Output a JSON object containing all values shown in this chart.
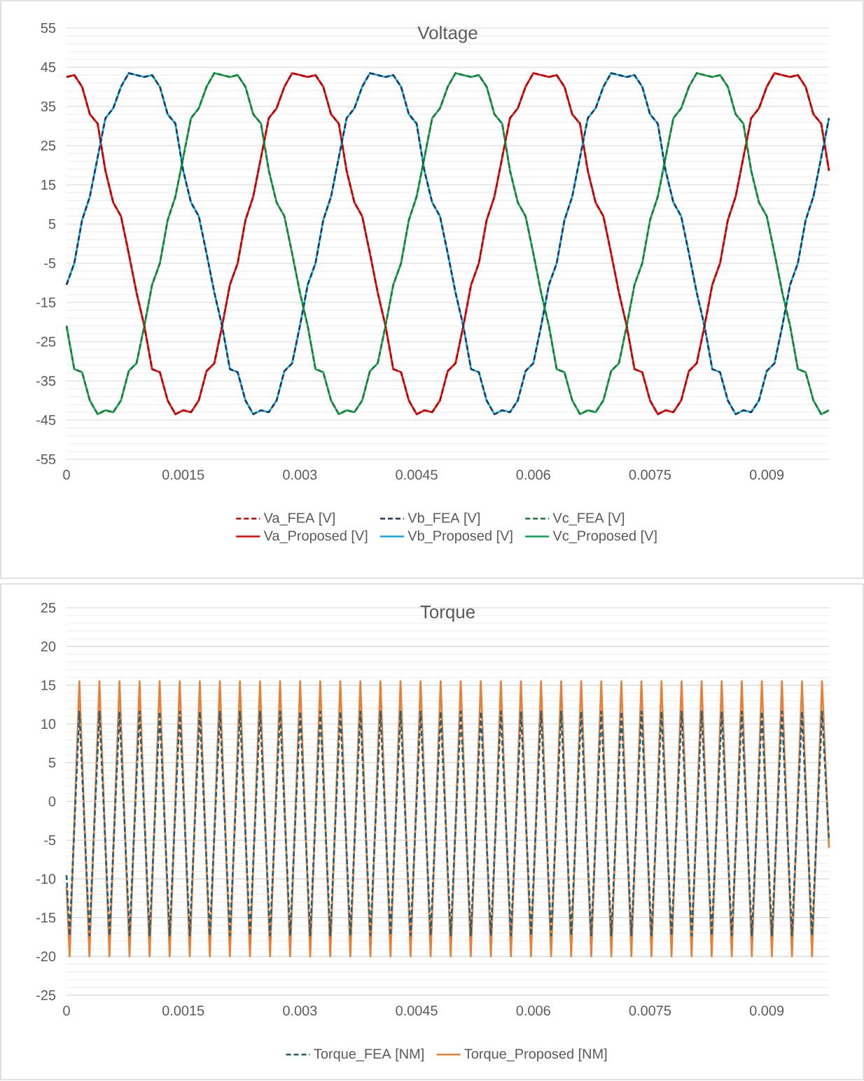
{
  "chart_data": [
    {
      "type": "line",
      "title": "Voltage",
      "xlim": [
        0,
        0.0098
      ],
      "xticks": [
        0,
        0.0015,
        0.003,
        0.0045,
        0.006,
        0.0075,
        0.009
      ],
      "ylim": [
        -55,
        55
      ],
      "yticks": [
        -55,
        -45,
        -35,
        -25,
        -15,
        -5,
        5,
        15,
        25,
        35,
        45,
        55
      ],
      "grid": "y",
      "legend": "bottom",
      "x": [
        0,
        0.0001,
        0.0002,
        0.0003,
        0.0004,
        0.0005,
        0.0006,
        0.0007,
        0.0008,
        0.0009,
        0.001,
        0.0011,
        0.0012,
        0.0013,
        0.0014,
        0.0015,
        0.0016,
        0.0017,
        0.0018,
        0.0019,
        0.002,
        0.0021,
        0.0022,
        0.0023,
        0.0024,
        0.0025,
        0.0026,
        0.0027,
        0.0028,
        0.0029,
        0.003,
        0.0031,
        0.0032,
        0.0033,
        0.0034,
        0.0035,
        0.0036,
        0.0037,
        0.0038,
        0.0039,
        0.004,
        0.0041,
        0.0042,
        0.0043,
        0.0044,
        0.0045,
        0.0046,
        0.0047,
        0.0048,
        0.0049,
        0.005,
        0.0051,
        0.0052,
        0.0053,
        0.0054,
        0.0055,
        0.0056,
        0.0057,
        0.0058,
        0.0059,
        0.006,
        0.0061,
        0.0062,
        0.0063,
        0.0064,
        0.0065,
        0.0066,
        0.0067,
        0.0068,
        0.0069,
        0.007,
        0.0071,
        0.0072,
        0.0073,
        0.0074,
        0.0075,
        0.0076,
        0.0077,
        0.0078,
        0.0079,
        0.008,
        0.0081,
        0.0082,
        0.0083,
        0.0084,
        0.0085,
        0.0086,
        0.0087,
        0.0088,
        0.0089,
        0.009,
        0.0091,
        0.0092,
        0.0093,
        0.0094,
        0.0095,
        0.0096,
        0.0097,
        0.0098
      ],
      "series": [
        {
          "name": "Va_FEA [V]",
          "color": "#c00000",
          "line_style": "dashed",
          "values": [
            42.5,
            43,
            40,
            33,
            30.6,
            18.6,
            10.5,
            7,
            -2.5,
            -12.5,
            -21,
            -32,
            -32.8,
            -40,
            -43.5,
            -42.5,
            -43,
            -40,
            -32.5,
            -30.5,
            -21,
            -10.5,
            -5,
            6,
            12,
            22,
            32,
            34.5,
            40,
            43.5,
            43,
            42.5,
            43,
            40,
            33,
            30.6,
            18.6,
            10.5,
            7,
            -2.5,
            -12.5,
            -21,
            -32,
            -32.8,
            -40,
            -43.5,
            -42.5,
            -43,
            -40,
            -32.5,
            -30.5,
            -21,
            -10.5,
            -5,
            6,
            12,
            22,
            32,
            34.5,
            40,
            43.5,
            43,
            42.5,
            43,
            40,
            33,
            30.6,
            18.6,
            10.5,
            7,
            -2.5,
            -12.5,
            -21,
            -32,
            -32.8,
            -40,
            -43.5,
            -42.5,
            -43,
            -40,
            -32.5,
            -30.5,
            -21,
            -10.5,
            -5,
            6,
            12,
            22,
            32,
            34.5,
            40,
            43.5,
            43,
            42.5,
            43,
            40,
            33,
            30.6,
            18.6
          ]
        },
        {
          "name": "Vb_FEA [V]",
          "color": "#1f3864",
          "line_style": "dashed",
          "values": [
            -10.5,
            -5,
            6,
            12,
            22,
            32,
            34.5,
            40,
            43.5,
            43,
            42.5,
            43,
            40,
            33,
            30.6,
            18.6,
            10.5,
            7,
            -2.5,
            -12.5,
            -21,
            -32,
            -32.8,
            -40,
            -43.5,
            -42.5,
            -43,
            -40,
            -32.5,
            -30.5,
            -21,
            -10.5,
            -5,
            6,
            12,
            22,
            32,
            34.5,
            40,
            43.5,
            43,
            42.5,
            43,
            40,
            33,
            30.6,
            18.6,
            10.5,
            7,
            -2.5,
            -12.5,
            -21,
            -32,
            -32.8,
            -40,
            -43.5,
            -42.5,
            -43,
            -40,
            -32.5,
            -30.5,
            -21,
            -10.5,
            -5,
            6,
            12,
            22,
            32,
            34.5,
            40,
            43.5,
            43,
            42.5,
            43,
            40,
            33,
            30.6,
            18.6,
            10.5,
            7,
            -2.5,
            -12.5,
            -21,
            -32,
            -32.8,
            -40,
            -43.5,
            -42.5,
            -43,
            -40,
            -32.5,
            -30.5,
            -21,
            -10.5,
            -5,
            6,
            12,
            22,
            32
          ]
        },
        {
          "name": "Vc_FEA [V]",
          "color": "#1e7b34",
          "line_style": "dashed",
          "values": [
            -21,
            -32,
            -32.8,
            -40,
            -43.5,
            -42.5,
            -43,
            -40,
            -32.5,
            -30.5,
            -21,
            -10.5,
            -5,
            6,
            12,
            22,
            32,
            34.5,
            40,
            43.5,
            43,
            42.5,
            43,
            40,
            33,
            30.6,
            18.6,
            10.5,
            7,
            -2.5,
            -12.5,
            -21,
            -32,
            -32.8,
            -40,
            -43.5,
            -42.5,
            -43,
            -40,
            -32.5,
            -30.5,
            -21,
            -10.5,
            -5,
            6,
            12,
            22,
            32,
            34.5,
            40,
            43.5,
            43,
            42.5,
            43,
            40,
            33,
            30.6,
            18.6,
            10.5,
            7,
            -2.5,
            -12.5,
            -21,
            -32,
            -32.8,
            -40,
            -43.5,
            -42.5,
            -43,
            -40,
            -32.5,
            -30.5,
            -21,
            -10.5,
            -5,
            6,
            12,
            22,
            32,
            34.5,
            40,
            43.5,
            43,
            42.5,
            43,
            40,
            33,
            30.6,
            18.6,
            10.5,
            7,
            -2.5,
            -12.5,
            -21,
            -32,
            -32.8,
            -40,
            -43.5,
            -42.5
          ]
        },
        {
          "name": "Va_Proposed [V]",
          "color": "#ff0000",
          "line_style": "solid",
          "values": [
            42.5,
            43,
            40,
            33,
            30.6,
            18.6,
            10.5,
            7,
            -2.5,
            -12.5,
            -21,
            -32,
            -32.8,
            -40,
            -43.5,
            -42.5,
            -43,
            -40,
            -32.5,
            -30.5,
            -21,
            -10.5,
            -5,
            6,
            12,
            22,
            32,
            34.5,
            40,
            43.5,
            43,
            42.5,
            43,
            40,
            33,
            30.6,
            18.6,
            10.5,
            7,
            -2.5,
            -12.5,
            -21,
            -32,
            -32.8,
            -40,
            -43.5,
            -42.5,
            -43,
            -40,
            -32.5,
            -30.5,
            -21,
            -10.5,
            -5,
            6,
            12,
            22,
            32,
            34.5,
            40,
            43.5,
            43,
            42.5,
            43,
            40,
            33,
            30.6,
            18.6,
            10.5,
            7,
            -2.5,
            -12.5,
            -21,
            -32,
            -32.8,
            -40,
            -43.5,
            -42.5,
            -43,
            -40,
            -32.5,
            -30.5,
            -21,
            -10.5,
            -5,
            6,
            12,
            22,
            32,
            34.5,
            40,
            43.5,
            43,
            42.5,
            43,
            40,
            33,
            30.6,
            18.6
          ]
        },
        {
          "name": "Vb_Proposed [V]",
          "color": "#00b0f0",
          "line_style": "solid",
          "values": [
            -10.5,
            -5,
            6,
            12,
            22,
            32,
            34.5,
            40,
            43.5,
            43,
            42.5,
            43,
            40,
            33,
            30.6,
            18.6,
            10.5,
            7,
            -2.5,
            -12.5,
            -21,
            -32,
            -32.8,
            -40,
            -43.5,
            -42.5,
            -43,
            -40,
            -32.5,
            -30.5,
            -21,
            -10.5,
            -5,
            6,
            12,
            22,
            32,
            34.5,
            40,
            43.5,
            43,
            42.5,
            43,
            40,
            33,
            30.6,
            18.6,
            10.5,
            7,
            -2.5,
            -12.5,
            -21,
            -32,
            -32.8,
            -40,
            -43.5,
            -42.5,
            -43,
            -40,
            -32.5,
            -30.5,
            -21,
            -10.5,
            -5,
            6,
            12,
            22,
            32,
            34.5,
            40,
            43.5,
            43,
            42.5,
            43,
            40,
            33,
            30.6,
            18.6,
            10.5,
            7,
            -2.5,
            -12.5,
            -21,
            -32,
            -32.8,
            -40,
            -43.5,
            -42.5,
            -43,
            -40,
            -32.5,
            -30.5,
            -21,
            -10.5,
            -5,
            6,
            12,
            22,
            32
          ]
        },
        {
          "name": "Vc_Proposed [V]",
          "color": "#00b050",
          "line_style": "solid",
          "values": [
            -21,
            -32,
            -32.8,
            -40,
            -43.5,
            -42.5,
            -43,
            -40,
            -32.5,
            -30.5,
            -21,
            -10.5,
            -5,
            6,
            12,
            22,
            32,
            34.5,
            40,
            43.5,
            43,
            42.5,
            43,
            40,
            33,
            30.6,
            18.6,
            10.5,
            7,
            -2.5,
            -12.5,
            -21,
            -32,
            -32.8,
            -40,
            -43.5,
            -42.5,
            -43,
            -40,
            -32.5,
            -30.5,
            -21,
            -10.5,
            -5,
            6,
            12,
            22,
            32,
            34.5,
            40,
            43.5,
            43,
            42.5,
            43,
            40,
            33,
            30.6,
            18.6,
            10.5,
            7,
            -2.5,
            -12.5,
            -21,
            -32,
            -32.8,
            -40,
            -43.5,
            -42.5,
            -43,
            -40,
            -32.5,
            -30.5,
            -21,
            -10.5,
            -5,
            6,
            12,
            22,
            32,
            34.5,
            40,
            43.5,
            43,
            42.5,
            43,
            40,
            33,
            30.6,
            18.6,
            10.5,
            7,
            -2.5,
            -12.5,
            -21,
            -32,
            -32.8,
            -40,
            -43.5,
            -42.5
          ]
        }
      ]
    },
    {
      "type": "line",
      "title": "Torque",
      "xlim": [
        0,
        0.0098
      ],
      "xticks": [
        0,
        0.0015,
        0.003,
        0.0045,
        0.006,
        0.0075,
        0.009
      ],
      "ylim": [
        -25,
        25
      ],
      "yticks": [
        -25,
        -20,
        -15,
        -10,
        -5,
        0,
        5,
        10,
        15,
        20,
        25
      ],
      "grid": "y",
      "legend": "bottom",
      "x": [
        0,
        4e-05,
        0.000165,
        0.000294,
        0.000423,
        0.000552,
        0.000681,
        0.00081,
        0.000939,
        0.001068,
        0.001197,
        0.001326,
        0.001455,
        0.001584,
        0.001713,
        0.001842,
        0.001971,
        0.0021,
        0.002229,
        0.002358,
        0.002487,
        0.002616,
        0.002745,
        0.002874,
        0.003003,
        0.003132,
        0.003261,
        0.00339,
        0.003519,
        0.003648,
        0.003777,
        0.003906,
        0.004035,
        0.004164,
        0.004293,
        0.004422,
        0.004551,
        0.00468,
        0.004809,
        0.004938,
        0.005067,
        0.005196,
        0.005325,
        0.005454,
        0.005583,
        0.005712,
        0.005841,
        0.00597,
        0.006099,
        0.006228,
        0.006357,
        0.006486,
        0.006615,
        0.006744,
        0.006873,
        0.007002,
        0.007131,
        0.00726,
        0.007389,
        0.007518,
        0.007647,
        0.007776,
        0.007905,
        0.008034,
        0.008163,
        0.008292,
        0.008421,
        0.00855,
        0.008679,
        0.008808,
        0.008937,
        0.009066,
        0.009195,
        0.009324,
        0.009453,
        0.009582,
        0.009711,
        0.0098
      ],
      "series": [
        {
          "name": "Torque_FEA [NM]",
          "color": "#1f5f7a",
          "line_style": "dashed",
          "values": [
            -9.5,
            -17.3,
            11.6,
            -17.3,
            11.6,
            -17.3,
            11.6,
            -17.3,
            11.6,
            -17.3,
            11.6,
            -17.3,
            11.6,
            -17.3,
            11.6,
            -17.3,
            11.6,
            -17.3,
            11.6,
            -17.3,
            11.6,
            -17.3,
            11.6,
            -17.3,
            11.6,
            -17.3,
            11.6,
            -17.3,
            11.6,
            -17.3,
            11.6,
            -17.3,
            11.6,
            -17.3,
            11.6,
            -17.3,
            11.6,
            -17.3,
            11.6,
            -17.3,
            11.6,
            -17.3,
            11.6,
            -17.3,
            11.6,
            -17.3,
            11.6,
            -17.3,
            11.6,
            -17.3,
            11.6,
            -17.3,
            11.6,
            -17.3,
            11.6,
            -17.3,
            11.6,
            -17.3,
            11.6,
            -17.3,
            11.6,
            -17.3,
            11.6,
            -17.3,
            11.6,
            -17.3,
            11.6,
            -17.3,
            11.6,
            -17.3,
            11.6,
            -17.3,
            11.6,
            -17.3,
            11.6,
            -17.3,
            11.6,
            -5
          ]
        },
        {
          "name": "Torque_Proposed [NM]",
          "color": "#ed7d31",
          "line_style": "solid",
          "values": [
            -11,
            -20,
            15.5,
            -20,
            15.5,
            -20,
            15.5,
            -20,
            15.5,
            -20,
            15.5,
            -20,
            15.5,
            -20,
            15.5,
            -20,
            15.5,
            -20,
            15.5,
            -20,
            15.5,
            -20,
            15.5,
            -20,
            15.5,
            -20,
            15.5,
            -20,
            15.5,
            -20,
            15.5,
            -20,
            15.5,
            -20,
            15.5,
            -20,
            15.5,
            -20,
            15.5,
            -20,
            15.5,
            -20,
            15.5,
            -20,
            15.5,
            -20,
            15.5,
            -20,
            15.5,
            -20,
            15.5,
            -20,
            15.5,
            -20,
            15.5,
            -20,
            15.5,
            -20,
            15.5,
            -20,
            15.5,
            -20,
            15.5,
            -20,
            15.5,
            -20,
            15.5,
            -20,
            15.5,
            -20,
            15.5,
            -20,
            15.5,
            -20,
            15.5,
            -20,
            15.5,
            -6
          ]
        }
      ]
    }
  ]
}
